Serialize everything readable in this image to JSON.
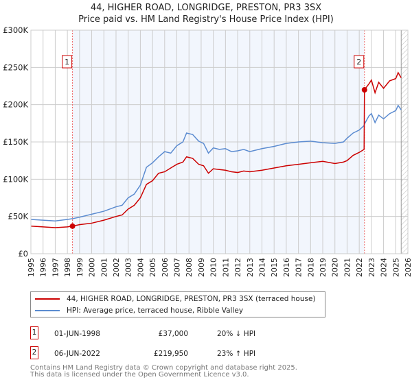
{
  "title": "44, HIGHER ROAD, LONGRIDGE, PRESTON, PR3 3SX",
  "subtitle": "Price paid vs. HM Land Registry's House Price Index (HPI)",
  "chart_data": {
    "type": "line",
    "xlim": [
      1995,
      2026
    ],
    "ylim": [
      0,
      300000
    ],
    "x_ticks": [
      "1995",
      "1996",
      "1997",
      "1998",
      "1999",
      "2000",
      "2001",
      "2002",
      "2003",
      "2004",
      "2005",
      "2006",
      "2007",
      "2008",
      "2009",
      "2010",
      "2011",
      "2012",
      "2013",
      "2014",
      "2015",
      "2016",
      "2017",
      "2018",
      "2019",
      "2020",
      "2021",
      "2022",
      "2023",
      "2024",
      "2025",
      "2026"
    ],
    "y_ticks": [
      {
        "v": 0,
        "l": "£0"
      },
      {
        "v": 50000,
        "l": "£50K"
      },
      {
        "v": 100000,
        "l": "£100K"
      },
      {
        "v": 150000,
        "l": "£150K"
      },
      {
        "v": 200000,
        "l": "£200K"
      },
      {
        "v": 250000,
        "l": "£250K"
      },
      {
        "v": 300000,
        "l": "£300K"
      }
    ],
    "grid": true,
    "series": [
      {
        "name": "44, HIGHER ROAD, LONGRIDGE, PRESTON, PR3 3SX (terraced house)",
        "color": "#cc0000",
        "x": [
          1995,
          1996,
          1997,
          1998,
          1998.42,
          1999,
          2000,
          2001,
          2002,
          2002.5,
          2003,
          2003.5,
          2004,
          2004.5,
          2005,
          2005.5,
          2006,
          2006.5,
          2007,
          2007.5,
          2007.8,
          2008.3,
          2008.8,
          2009.2,
          2009.6,
          2010,
          2010.5,
          2011,
          2011.5,
          2012,
          2012.5,
          2013,
          2014,
          2015,
          2016,
          2017,
          2018,
          2019,
          2020,
          2020.7,
          2021,
          2021.5,
          2022,
          2022.4,
          2022.43,
          2022.8,
          2023,
          2023.3,
          2023.6,
          2024,
          2024.5,
          2025,
          2025.2,
          2025.45
        ],
        "y": [
          37000,
          36000,
          35000,
          36000,
          37000,
          39000,
          41000,
          45000,
          50000,
          52000,
          60000,
          65000,
          75000,
          93000,
          98000,
          108000,
          110000,
          115000,
          120000,
          123000,
          130000,
          128000,
          120000,
          118000,
          108000,
          114000,
          113000,
          112000,
          110000,
          109000,
          111000,
          110000,
          112000,
          115000,
          118000,
          120000,
          122000,
          124000,
          121000,
          123000,
          125000,
          132000,
          136000,
          140000,
          219950,
          228000,
          233000,
          216000,
          230000,
          222000,
          232000,
          235000,
          243000,
          236000
        ]
      },
      {
        "name": "HPI: Average price, terraced house, Ribble Valley",
        "color": "#5b8bd0",
        "x": [
          1995,
          1996,
          1997,
          1998,
          1998.42,
          1999,
          2000,
          2001,
          2002,
          2002.5,
          2003,
          2003.5,
          2004,
          2004.5,
          2005,
          2005.5,
          2006,
          2006.5,
          2007,
          2007.5,
          2007.8,
          2008.3,
          2008.8,
          2009.2,
          2009.6,
          2010,
          2010.5,
          2011,
          2011.5,
          2012,
          2012.5,
          2013,
          2014,
          2015,
          2016,
          2017,
          2018,
          2019,
          2020,
          2020.7,
          2021,
          2021.5,
          2022,
          2022.4,
          2022.43,
          2022.8,
          2023,
          2023.3,
          2023.6,
          2024,
          2024.5,
          2025,
          2025.2,
          2025.45
        ],
        "y": [
          46000,
          45000,
          44000,
          46000,
          47000,
          49000,
          53000,
          57000,
          63000,
          65000,
          75000,
          80000,
          92000,
          116000,
          122000,
          130000,
          137000,
          135000,
          145000,
          150000,
          162000,
          160000,
          151000,
          148000,
          135000,
          142000,
          140000,
          141000,
          137000,
          138000,
          140000,
          137000,
          141000,
          144000,
          148000,
          150000,
          151000,
          149000,
          148000,
          150000,
          155000,
          162000,
          166000,
          172000,
          174000,
          185000,
          188000,
          176000,
          186000,
          181000,
          188000,
          192000,
          199000,
          193000
        ]
      }
    ],
    "sales": [
      {
        "label": "1",
        "x": 1998.42,
        "y": 37000
      },
      {
        "label": "2",
        "x": 2022.43,
        "y": 219950
      }
    ],
    "shaded_range": [
      1998.42,
      2022.43
    ],
    "hatched_from": 2025.45
  },
  "legend": {
    "items": [
      {
        "label": "44, HIGHER ROAD, LONGRIDGE, PRESTON, PR3 3SX (terraced house)",
        "color": "#cc0000"
      },
      {
        "label": "HPI: Average price, terraced house, Ribble Valley",
        "color": "#5b8bd0"
      }
    ]
  },
  "table": [
    {
      "num": "1",
      "date": "01-JUN-1998",
      "price": "£37,000",
      "hpi": "20% ↓ HPI"
    },
    {
      "num": "2",
      "date": "06-JUN-2022",
      "price": "£219,950",
      "hpi": "23% ↑ HPI"
    }
  ],
  "footer": {
    "line1": "Contains HM Land Registry data © Crown copyright and database right 2025.",
    "line2": "This data is licensed under the Open Government Licence v3.0."
  }
}
